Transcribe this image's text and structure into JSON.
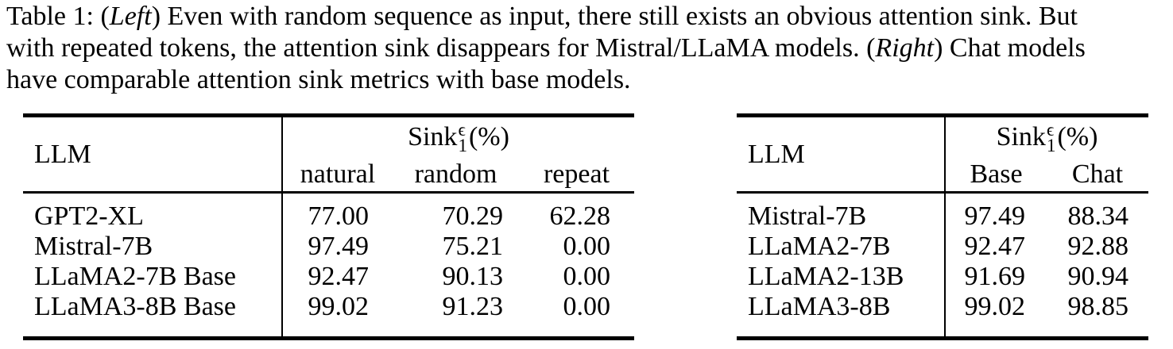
{
  "colors": {
    "text": "#000000",
    "background": "#ffffff"
  },
  "caption": {
    "line1_pre": "Table 1: (",
    "line1_italic": "Left",
    "line1_post": ") Even with random sequence as input, there still exists an obvious attention sink. But",
    "line2_pre": "with repeated tokens, the attention sink disappears for Mistral/LLaMA models. (",
    "line2_italic": "Right",
    "line2_post": ") Chat models",
    "line3": "have comparable attention sink metrics with base models."
  },
  "left_table": {
    "llm_header": "LLM",
    "metric": {
      "name": "Sink",
      "sup": "ϵ",
      "sub": "1",
      "unit": "(%)"
    },
    "columns": [
      "natural",
      "random",
      "repeat"
    ],
    "rows": [
      {
        "llm": "GPT2-XL",
        "values": [
          "77.00",
          "70.29",
          "62.28"
        ]
      },
      {
        "llm": "Mistral-7B",
        "values": [
          "97.49",
          "75.21",
          "0.00"
        ]
      },
      {
        "llm": "LLaMA2-7B Base",
        "values": [
          "92.47",
          "90.13",
          "0.00"
        ]
      },
      {
        "llm": "LLaMA3-8B Base",
        "values": [
          "99.02",
          "91.23",
          "0.00"
        ]
      }
    ]
  },
  "right_table": {
    "llm_header": "LLM",
    "metric": {
      "name": "Sink",
      "sup": "ϵ",
      "sub": "1",
      "unit": "(%)"
    },
    "columns": [
      "Base",
      "Chat"
    ],
    "rows": [
      {
        "llm": "Mistral-7B",
        "values": [
          "97.49",
          "88.34"
        ]
      },
      {
        "llm": "LLaMA2-7B",
        "values": [
          "92.47",
          "92.88"
        ]
      },
      {
        "llm": "LLaMA2-13B",
        "values": [
          "91.69",
          "90.94"
        ]
      },
      {
        "llm": "LLaMA3-8B",
        "values": [
          "99.02",
          "98.85"
        ]
      }
    ]
  }
}
